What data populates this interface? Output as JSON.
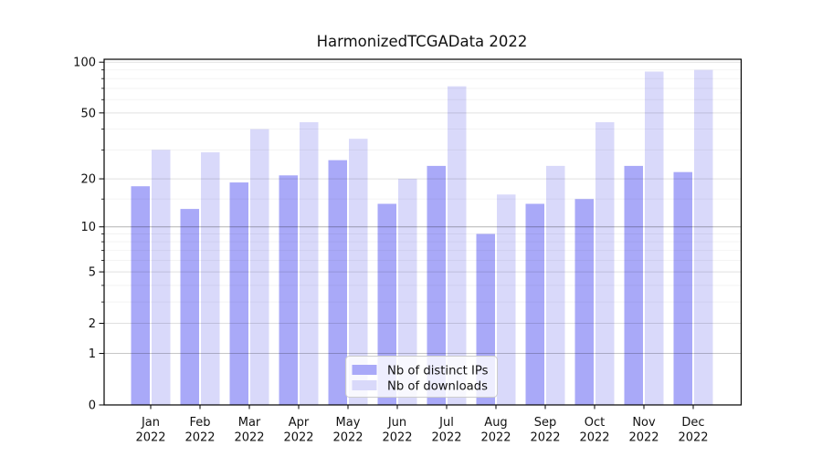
{
  "title": "HarmonizedTCGAData 2022",
  "chart_data": {
    "type": "bar",
    "title": "HarmonizedTCGAData 2022",
    "categories": [
      "Jan",
      "Feb",
      "Mar",
      "Apr",
      "May",
      "Jun",
      "Jul",
      "Aug",
      "Sep",
      "Oct",
      "Nov",
      "Dec"
    ],
    "x_year": "2022",
    "series": [
      {
        "name": "Nb of distinct IPs",
        "color": "#a9a9f8",
        "values": [
          18,
          13,
          19,
          21,
          26,
          14,
          24,
          9,
          14,
          15,
          24,
          22
        ]
      },
      {
        "name": "Nb of downloads",
        "color": "#d9d9fa",
        "values": [
          30,
          29,
          40,
          44,
          35,
          20,
          72,
          16,
          24,
          44,
          88,
          90
        ]
      }
    ],
    "xlabel": "",
    "ylabel": "",
    "y_scale": "log10(1+y)",
    "y_ticks": [
      0,
      1,
      2,
      5,
      10,
      20,
      50,
      100
    ],
    "y_minor_gridlines": [
      3,
      4,
      6,
      7,
      8,
      9,
      15,
      30,
      40,
      60,
      70,
      80,
      90
    ],
    "ylim": [
      0,
      105
    ],
    "grid": true,
    "legend_position": "lower center"
  }
}
